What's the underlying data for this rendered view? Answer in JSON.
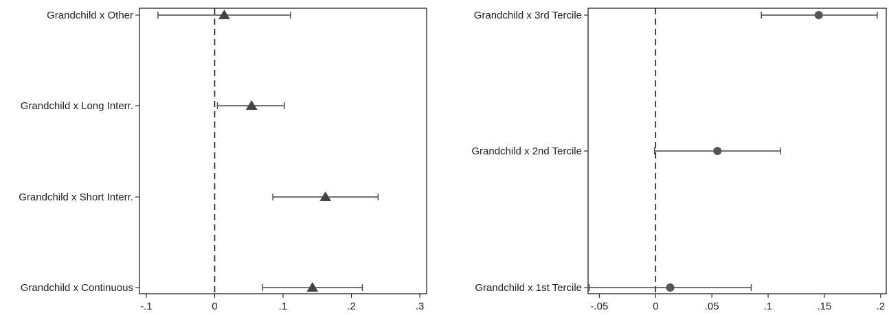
{
  "chart_data": [
    {
      "type": "scatter",
      "subtype": "coefficient-plot",
      "title": "",
      "xlabel": "",
      "ylabel": "",
      "xlim": [
        -0.11,
        0.31
      ],
      "xticks": [
        -0.1,
        0,
        0.1,
        0.2,
        0.3
      ],
      "xtick_labels": [
        "-.1",
        "0",
        ".1",
        ".2",
        ".3"
      ],
      "reference_line_x": 0,
      "marker": "triangle",
      "marker_color": "#444444",
      "grid": false,
      "categories": [
        "Grandchild x Other",
        "Grandchild x Long Interr.",
        "Grandchild x Short Interr.",
        "Grandchild x Continuous"
      ],
      "estimates": [
        0.014,
        0.054,
        0.162,
        0.143
      ],
      "ci_low": [
        -0.083,
        0.004,
        0.085,
        0.07
      ],
      "ci_high": [
        0.111,
        0.102,
        0.239,
        0.216
      ]
    },
    {
      "type": "scatter",
      "subtype": "coefficient-plot",
      "title": "",
      "xlabel": "",
      "ylabel": "",
      "xlim": [
        -0.06,
        0.205
      ],
      "xticks": [
        -0.05,
        0,
        0.05,
        0.1,
        0.15,
        0.2
      ],
      "xtick_labels": [
        "-.05",
        "0",
        ".05",
        ".1",
        ".15",
        ".2"
      ],
      "reference_line_x": 0,
      "marker": "circle",
      "marker_color": "#555555",
      "grid": false,
      "categories": [
        "Grandchild x 3rd Tercile",
        "Grandchild x 2nd Tercile",
        "Grandchild x 1st Tercile"
      ],
      "estimates": [
        0.145,
        0.055,
        0.013
      ],
      "ci_low": [
        0.094,
        -0.001,
        -0.059
      ],
      "ci_high": [
        0.197,
        0.111,
        0.085
      ]
    }
  ]
}
